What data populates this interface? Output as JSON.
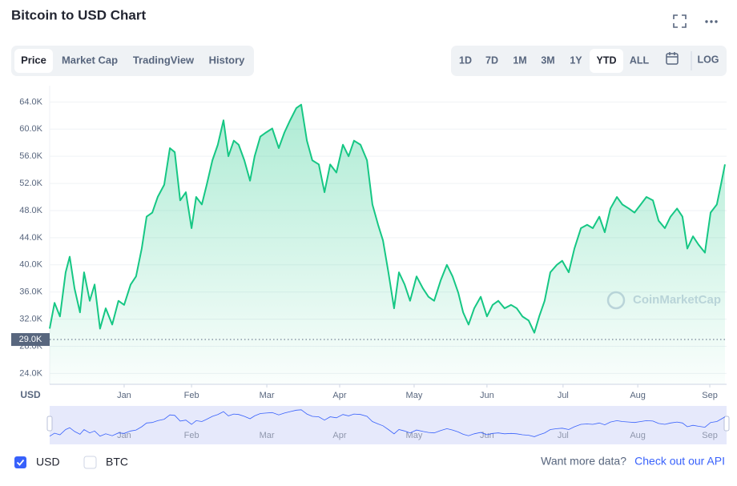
{
  "header": {
    "title": "Bitcoin to USD Chart",
    "tabs": [
      "Price",
      "Market Cap",
      "TradingView",
      "History"
    ],
    "ranges": [
      "1D",
      "7D",
      "1M",
      "3M",
      "1Y",
      "YTD",
      "ALL"
    ],
    "scale_button": "LOG"
  },
  "chart_data": {
    "type": "line",
    "ylabel": "USD",
    "watermark": "CoinMarketCap",
    "ylim": [
      22400,
      66400
    ],
    "xlim": [
      0,
      250
    ],
    "grid": true,
    "yticks": [
      {
        "value": 24000,
        "label": "24.0K"
      },
      {
        "value": 28000,
        "label": "28.0K"
      },
      {
        "value": 32000,
        "label": "32.0K"
      },
      {
        "value": 36000,
        "label": "36.0K"
      },
      {
        "value": 40000,
        "label": "40.0K"
      },
      {
        "value": 44000,
        "label": "44.0K"
      },
      {
        "value": 48000,
        "label": "48.0K"
      },
      {
        "value": 52000,
        "label": "52.0K"
      },
      {
        "value": 56000,
        "label": "56.0K"
      },
      {
        "value": 60000,
        "label": "60.0K"
      },
      {
        "value": 64000,
        "label": "64.0K"
      }
    ],
    "xticks": [
      {
        "value": 27.5,
        "label": "Jan"
      },
      {
        "value": 52.4,
        "label": "Feb"
      },
      {
        "value": 80.2,
        "label": "Mar"
      },
      {
        "value": 107.1,
        "label": "Apr"
      },
      {
        "value": 134.6,
        "label": "May"
      },
      {
        "value": 161.5,
        "label": "Jun"
      },
      {
        "value": 189.6,
        "label": "Jul"
      },
      {
        "value": 217.2,
        "label": "Aug"
      },
      {
        "value": 243.8,
        "label": "Sep"
      }
    ],
    "price_marker": {
      "value": 29000,
      "label": "29.0K"
    },
    "series": [
      {
        "color": "#16c784",
        "x": [
          0,
          1.8,
          3.8,
          5.9,
          7.4,
          9.2,
          11.2,
          12.7,
          14.8,
          16.6,
          18.6,
          20.7,
          23.1,
          25.4,
          27.5,
          29.9,
          31.9,
          34,
          35.8,
          37.9,
          39.9,
          42.3,
          44.4,
          46.2,
          48.2,
          50.3,
          52.4,
          54.1,
          56.2,
          58,
          60.1,
          62.1,
          64.2,
          66,
          68,
          69.8,
          71.9,
          74,
          75.7,
          77.8,
          79.9,
          82.2,
          84.6,
          86.7,
          88.8,
          91.1,
          92.9,
          95,
          97,
          99.4,
          101.5,
          103.6,
          105.9,
          108.3,
          110.4,
          112.4,
          114.8,
          117.2,
          119.2,
          121.3,
          123.1,
          125.1,
          127.2,
          129,
          131.1,
          133.1,
          135.5,
          137.9,
          139.9,
          142,
          144.4,
          146.7,
          148.8,
          150.9,
          152.7,
          154.7,
          156.8,
          159.2,
          161.5,
          163.6,
          165.7,
          168,
          170.4,
          172.5,
          174.6,
          176.9,
          179,
          180.8,
          182.8,
          184.9,
          187.3,
          189.3,
          191.7,
          193.8,
          196.2,
          198.5,
          200.6,
          203,
          205,
          207.1,
          209.5,
          211.5,
          213.9,
          216,
          218.3,
          220.4,
          222.8,
          224.9,
          227.2,
          229.3,
          231.7,
          233.7,
          235.5,
          237.6,
          239.6,
          242,
          244.1,
          246.4,
          247.9,
          249.4
        ],
        "values": [
          30600,
          34400,
          32400,
          38900,
          41200,
          36500,
          33000,
          38900,
          34700,
          37100,
          30600,
          33600,
          31200,
          34700,
          34100,
          37100,
          38300,
          42400,
          47100,
          47700,
          50000,
          51800,
          57200,
          56600,
          49500,
          50700,
          45400,
          50000,
          48900,
          51800,
          55400,
          57700,
          61300,
          56000,
          58300,
          57700,
          55400,
          52400,
          56000,
          58900,
          59500,
          60100,
          57200,
          59500,
          61300,
          63100,
          63600,
          58300,
          55400,
          54800,
          50700,
          54800,
          53600,
          57700,
          56000,
          58300,
          57700,
          55400,
          48900,
          45900,
          43600,
          38900,
          33600,
          38900,
          37100,
          34700,
          38300,
          36500,
          35300,
          34700,
          37700,
          40000,
          38300,
          35900,
          33000,
          31200,
          33600,
          35300,
          32400,
          34100,
          34700,
          33600,
          34100,
          33600,
          32400,
          31800,
          30000,
          32400,
          34700,
          38900,
          40000,
          40600,
          38900,
          42400,
          45400,
          45900,
          45400,
          47100,
          44800,
          48300,
          50000,
          48900,
          48300,
          47700,
          48900,
          50000,
          49500,
          46500,
          45400,
          47100,
          48300,
          47100,
          42400,
          44200,
          43000,
          41800,
          47700,
          48900,
          51800,
          54800
        ]
      }
    ]
  },
  "footer": {
    "currencies": [
      "USD",
      "BTC"
    ],
    "prompt": "Want more data?",
    "link": "Check out our API"
  }
}
